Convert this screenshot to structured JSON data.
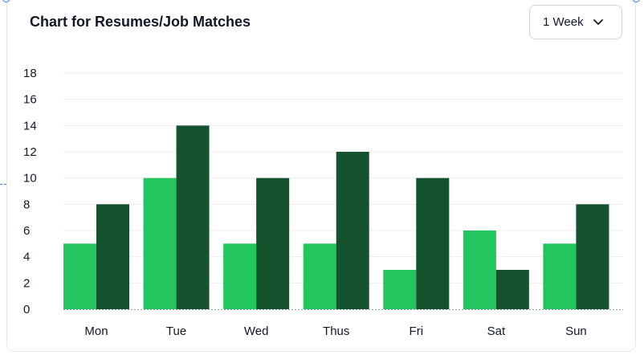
{
  "title": "Chart for Resumes/Job Matches",
  "period_select": {
    "value": "1 Week",
    "icon": "chevron-down-icon"
  },
  "colors": {
    "series_light": "#22c55e",
    "series_dark": "#14532d",
    "grid": "#eeeeee"
  },
  "chart_data": {
    "type": "bar",
    "title": "Chart for Resumes/Job Matches",
    "xlabel": "",
    "ylabel": "",
    "categories": [
      "Mon",
      "Tue",
      "Wed",
      "Thus",
      "Fri",
      "Sat",
      "Sun"
    ],
    "series": [
      {
        "values": [
          5,
          10,
          5,
          5,
          3,
          6,
          5
        ],
        "color": "#22c55e"
      },
      {
        "values": [
          8,
          14,
          10,
          12,
          10,
          3,
          8
        ],
        "color": "#14532d"
      }
    ],
    "yticks": [
      0,
      2,
      4,
      6,
      8,
      10,
      12,
      14,
      16,
      18
    ],
    "ylim": [
      0,
      18
    ],
    "grid": true,
    "legend": "none"
  }
}
